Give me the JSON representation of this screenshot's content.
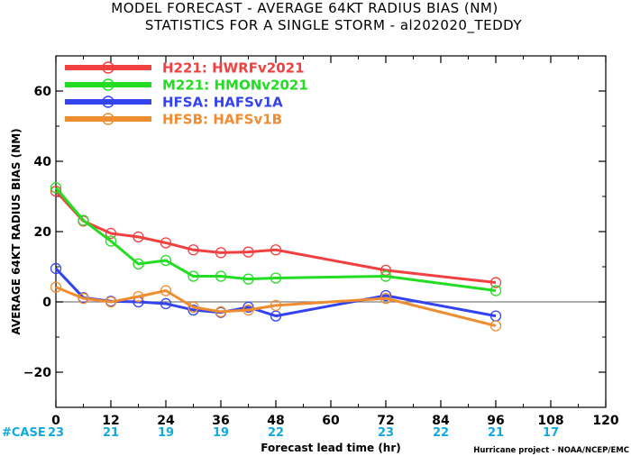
{
  "chart_data": {
    "type": "line",
    "title": "MODEL FORECAST - AVERAGE 64KT RADIUS BIAS (NM)",
    "subtitle": "STATISTICS FOR A SINGLE STORM - al202020_TEDDY",
    "xlabel": "Forecast lead time (hr)",
    "ylabel": "AVERAGE 64KT RADIUS BIAS (NM)",
    "xlim": [
      0,
      120
    ],
    "ylim": [
      -30,
      70
    ],
    "x_ticks": [
      0,
      12,
      24,
      36,
      48,
      60,
      72,
      84,
      96,
      108,
      120
    ],
    "y_ticks": [
      -20,
      0,
      20,
      40,
      60
    ],
    "case_label": "#CASE",
    "case_x": [
      0,
      12,
      24,
      36,
      48,
      72,
      84,
      96,
      108
    ],
    "case_counts": [
      "23",
      "21",
      "19",
      "19",
      "22",
      "23",
      "22",
      "21",
      "17"
    ],
    "credit": "Hurricane project - NOAA/NCEP/EMC",
    "legend_position": "top-left",
    "series": [
      {
        "name": "H221: HWRFv2021",
        "color": "#f04040",
        "points": [
          [
            0,
            31.5
          ],
          [
            6,
            23.0
          ],
          [
            12,
            19.5
          ],
          [
            18,
            18.5
          ],
          [
            24,
            16.8
          ],
          [
            30,
            14.8
          ],
          [
            36,
            14.0
          ],
          [
            42,
            14.2
          ],
          [
            48,
            14.8
          ],
          [
            72,
            9.0
          ],
          [
            96,
            5.5
          ]
        ]
      },
      {
        "name": "M221: HMONv2021",
        "color": "#22dd22",
        "points": [
          [
            0,
            32.5
          ],
          [
            6,
            23.2
          ],
          [
            12,
            17.3
          ],
          [
            18,
            10.8
          ],
          [
            24,
            11.8
          ],
          [
            30,
            7.3
          ],
          [
            36,
            7.3
          ],
          [
            42,
            6.5
          ],
          [
            48,
            6.8
          ],
          [
            72,
            7.3
          ],
          [
            96,
            3.2
          ]
        ]
      },
      {
        "name": "HFSA: HAFSv1A",
        "color": "#3344ee",
        "points": [
          [
            0,
            9.5
          ],
          [
            6,
            1.2
          ],
          [
            12,
            0.2
          ],
          [
            18,
            0.0
          ],
          [
            24,
            -0.5
          ],
          [
            30,
            -2.3
          ],
          [
            36,
            -3.0
          ],
          [
            42,
            -1.5
          ],
          [
            48,
            -4.0
          ],
          [
            72,
            1.8
          ],
          [
            96,
            -4.0
          ]
        ]
      },
      {
        "name": "HFSB: HAFSv1B",
        "color": "#f08c30",
        "points": [
          [
            0,
            4.2
          ],
          [
            6,
            1.0
          ],
          [
            12,
            0.0
          ],
          [
            18,
            1.5
          ],
          [
            24,
            3.2
          ],
          [
            30,
            -1.5
          ],
          [
            36,
            -2.8
          ],
          [
            42,
            -2.3
          ],
          [
            48,
            -1.0
          ],
          [
            72,
            1.0
          ],
          [
            96,
            -6.8
          ]
        ]
      }
    ]
  },
  "colors": {
    "case_label": "#11aadd",
    "zero_line": "#808080",
    "axes": "#000000"
  }
}
